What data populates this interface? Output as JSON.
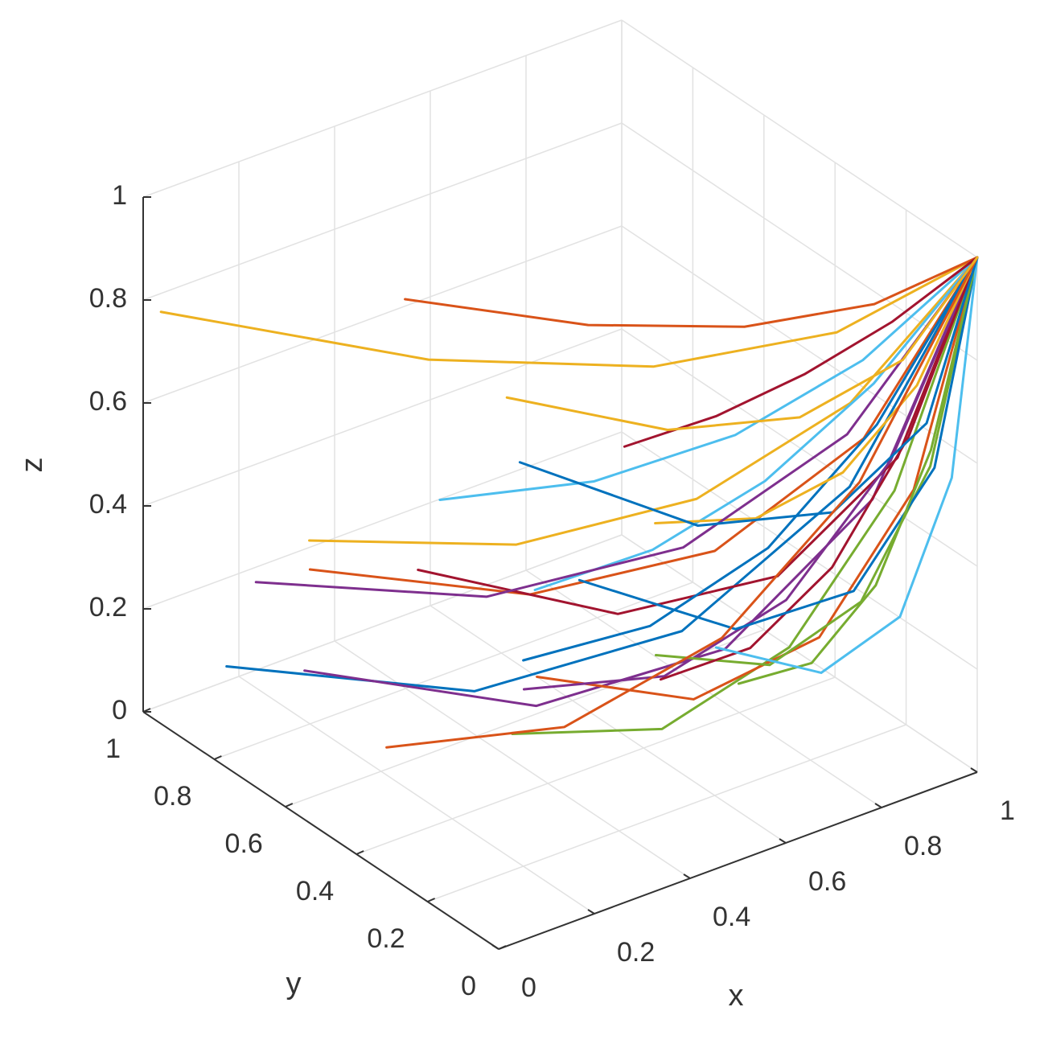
{
  "chart_data": {
    "type": "line3d",
    "xlabel": "x",
    "ylabel": "y",
    "zlabel": "z",
    "xlim": [
      0,
      1
    ],
    "ylim": [
      0,
      1
    ],
    "zlim": [
      0,
      1
    ],
    "xticks": [
      0,
      0.2,
      0.4,
      0.6,
      0.8,
      1
    ],
    "yticks": [
      0,
      0.2,
      0.4,
      0.6,
      0.8,
      1
    ],
    "zticks": [
      0,
      0.2,
      0.4,
      0.6,
      0.8,
      1
    ],
    "grid": true,
    "series": [
      {
        "color": "#0072BD",
        "x": [
          0.1,
          0.325,
          0.55,
          0.775,
          1
        ],
        "y": [
          0.9,
          0.506,
          0.225,
          0.056,
          0
        ],
        "z": [
          0.1,
          0.156,
          0.325,
          0.606,
          1
        ]
      },
      {
        "color": "#D95319",
        "x": [
          0.2,
          0.4,
          0.6,
          0.8,
          1
        ],
        "y": [
          0.8,
          0.45,
          0.2,
          0.05,
          0
        ],
        "z": [
          0.3,
          0.344,
          0.475,
          0.694,
          1
        ]
      },
      {
        "color": "#EDB120",
        "x": [
          0.05,
          0.288,
          0.525,
          0.763,
          1
        ],
        "y": [
          0.6,
          0.338,
          0.15,
          0.038,
          0
        ],
        "z": [
          0.5,
          0.531,
          0.625,
          0.781,
          1
        ]
      },
      {
        "color": "#7E2F8E",
        "x": [
          0.3,
          0.475,
          0.65,
          0.825,
          1
        ],
        "y": [
          0.95,
          0.534,
          0.238,
          0.059,
          0
        ],
        "z": [
          0,
          0.063,
          0.25,
          0.563,
          1
        ]
      },
      {
        "color": "#77AC30",
        "x": [
          0.4,
          0.55,
          0.7,
          0.85,
          1
        ],
        "y": [
          0.5,
          0.281,
          0.125,
          0.031,
          0
        ],
        "z": [
          0.05,
          0.109,
          0.288,
          0.584,
          1
        ]
      },
      {
        "color": "#4DBEEE",
        "x": [
          0.1,
          0.325,
          0.55,
          0.775,
          1
        ],
        "y": [
          0.3,
          0.169,
          0.075,
          0.019,
          0
        ],
        "z": [
          0.7,
          0.719,
          0.775,
          0.869,
          1
        ]
      },
      {
        "color": "#A2142F",
        "x": [
          0.5,
          0.625,
          0.75,
          0.875,
          1
        ],
        "y": [
          0.9,
          0.506,
          0.225,
          0.056,
          0
        ],
        "z": [
          0.15,
          0.203,
          0.363,
          0.628,
          1
        ]
      },
      {
        "color": "#0072BD",
        "x": [
          0.2,
          0.4,
          0.6,
          0.8,
          1
        ],
        "y": [
          0.2,
          0.113,
          0.05,
          0.013,
          0
        ],
        "z": [
          0.4,
          0.438,
          0.55,
          0.738,
          1
        ]
      },
      {
        "color": "#D95319",
        "x": [
          0.6,
          0.7,
          0.8,
          0.9,
          1
        ],
        "y": [
          0.7,
          0.394,
          0.175,
          0.044,
          0
        ],
        "z": [
          0,
          0.063,
          0.25,
          0.563,
          1
        ]
      },
      {
        "color": "#EDB120",
        "x": [
          0,
          0.25,
          0.5,
          0.75,
          1
        ],
        "y": [
          0.95,
          0.534,
          0.238,
          0.059,
          0
        ],
        "z": [
          0.8,
          0.813,
          0.85,
          0.913,
          1
        ]
      },
      {
        "color": "#7E2F8E",
        "x": [
          0.35,
          0.513,
          0.675,
          0.838,
          1
        ],
        "y": [
          0.4,
          0.225,
          0.1,
          0.025,
          0
        ],
        "z": [
          0.2,
          0.25,
          0.4,
          0.65,
          1
        ]
      },
      {
        "color": "#77AC30",
        "x": [
          0.7,
          0.775,
          0.85,
          0.925,
          1
        ],
        "y": [
          0.5,
          0.281,
          0.125,
          0.031,
          0
        ],
        "z": [
          0.1,
          0.156,
          0.325,
          0.606,
          1
        ]
      },
      {
        "color": "#4DBEEE",
        "x": [
          0.15,
          0.363,
          0.575,
          0.788,
          1
        ],
        "y": [
          0.1,
          0.056,
          0.025,
          0.006,
          0
        ],
        "z": [
          0.6,
          0.625,
          0.7,
          0.825,
          1
        ]
      },
      {
        "color": "#A2142F",
        "x": [
          0.45,
          0.588,
          0.725,
          0.863,
          1
        ],
        "y": [
          0.15,
          0.084,
          0.038,
          0.009,
          0
        ],
        "z": [
          0.3,
          0.344,
          0.475,
          0.694,
          1
        ]
      },
      {
        "color": "#0072BD",
        "x": [
          0.8,
          0.85,
          0.9,
          0.95,
          1
        ],
        "y": [
          0.85,
          0.478,
          0.213,
          0.053,
          0
        ],
        "z": [
          0.05,
          0.109,
          0.288,
          0.584,
          1
        ]
      },
      {
        "color": "#D95319",
        "x": [
          0.25,
          0.438,
          0.625,
          0.813,
          1
        ],
        "y": [
          0.6,
          0.338,
          0.15,
          0.038,
          0
        ],
        "z": [
          0.9,
          0.906,
          0.925,
          0.956,
          1
        ]
      },
      {
        "color": "#EDB120",
        "x": [
          0.55,
          0.663,
          0.775,
          0.888,
          1
        ],
        "y": [
          0.3,
          0.169,
          0.075,
          0.019,
          0
        ],
        "z": [
          0.5,
          0.531,
          0.625,
          0.781,
          1
        ]
      },
      {
        "color": "#7E2F8E",
        "x": [
          0.05,
          0.288,
          0.525,
          0.763,
          1
        ],
        "y": [
          0.75,
          0.422,
          0.188,
          0.047,
          0
        ],
        "z": [
          0.35,
          0.391,
          0.513,
          0.716,
          1
        ]
      },
      {
        "color": "#77AC30",
        "x": [
          0.65,
          0.738,
          0.825,
          0.913,
          1
        ],
        "y": [
          0.2,
          0.113,
          0.05,
          0.013,
          0
        ],
        "z": [
          0.2,
          0.25,
          0.4,
          0.65,
          1
        ]
      },
      {
        "color": "#4DBEEE",
        "x": [
          0.9,
          0.925,
          0.95,
          0.975,
          1
        ],
        "y": [
          0.6,
          0.338,
          0.15,
          0.038,
          0
        ],
        "z": [
          0,
          0.063,
          0.25,
          0.563,
          1
        ]
      },
      {
        "color": "#A2142F",
        "x": [
          0.3,
          0.475,
          0.65,
          0.825,
          1
        ],
        "y": [
          0.05,
          0.028,
          0.013,
          0.003,
          0
        ],
        "z": [
          0.85,
          0.859,
          0.888,
          0.934,
          1
        ]
      },
      {
        "color": "#0072BD",
        "x": [
          0.75,
          0.813,
          0.875,
          0.938,
          1
        ],
        "y": [
          0.95,
          0.534,
          0.238,
          0.059,
          0
        ],
        "z": [
          0.25,
          0.297,
          0.438,
          0.672,
          1
        ]
      },
      {
        "color": "#D95319",
        "x": [
          0.1,
          0.325,
          0.55,
          0.775,
          1
        ],
        "y": [
          0.45,
          0.253,
          0.113,
          0.028,
          0
        ],
        "z": [
          0.15,
          0.203,
          0.363,
          0.628,
          1
        ]
      },
      {
        "color": "#EDB120",
        "x": [
          0.5,
          0.625,
          0.75,
          0.875,
          1
        ],
        "y": [
          0.65,
          0.366,
          0.163,
          0.041,
          0
        ],
        "z": [
          0.6,
          0.625,
          0.7,
          0.825,
          1
        ]
      }
    ]
  }
}
